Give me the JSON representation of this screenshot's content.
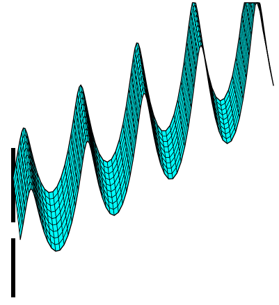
{
  "figure": {
    "surface_color": "#00ffff",
    "mesh_line_color": "#000000",
    "background_color": "#ffffff"
  }
}
